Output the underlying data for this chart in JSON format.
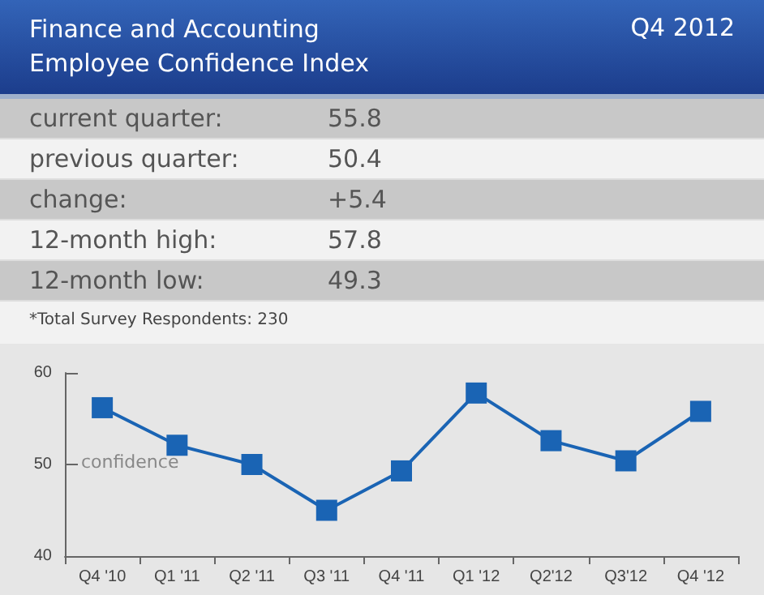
{
  "chart_data": {
    "type": "line",
    "title": "Finance and Accounting\nEmployee Confidence Index",
    "subtitle": "Q4 2012",
    "annotations": [
      "current quarter:",
      "55.8",
      "previous quarter:",
      "50.4",
      "change:",
      "+5.4",
      "12-month high:",
      "57.8",
      "12-month low:",
      "49.3",
      "*Total Survey Respondents: 230"
    ],
    "categories": [
      "Q4 '10",
      "Q1 '11",
      "Q2 '11",
      "Q3 '11",
      "Q4 '11",
      "Q1 '12",
      "Q2'12",
      "Q3'12",
      "Q4 '12"
    ],
    "series": [
      {
        "name": "confidence",
        "color": "#1a64b4",
        "values": [
          56.2,
          52.1,
          50.0,
          45.0,
          49.3,
          57.8,
          52.6,
          50.4,
          55.8
        ]
      }
    ],
    "ylim": [
      40,
      60
    ],
    "yticks": [
      40,
      50,
      60
    ],
    "grid": false,
    "legend": false,
    "marker": "square",
    "line_style": "solid"
  }
}
